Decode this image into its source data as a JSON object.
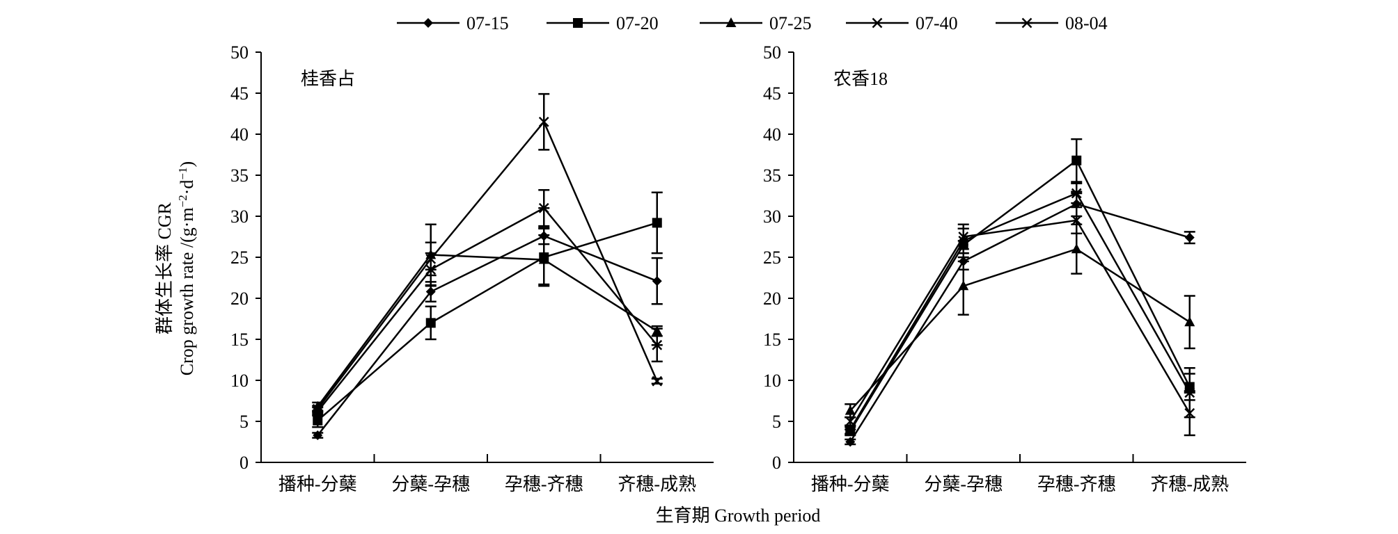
{
  "figure": {
    "ylabel_cn": "群体生长率 CGR",
    "ylabel_en_prefix": "Crop growth rate /(g·m",
    "ylabel_en_sup1": "−2",
    "ylabel_en_mid": "·d",
    "ylabel_en_sup2": "−1",
    "ylabel_en_suffix": ")",
    "xlabel": "生育期 Growth period",
    "legend": [
      {
        "name": "07-15",
        "marker": "diamond"
      },
      {
        "name": "07-20",
        "marker": "square"
      },
      {
        "name": "07-25",
        "marker": "triangle"
      },
      {
        "name": "07-40",
        "marker": "x"
      },
      {
        "name": "08-04",
        "marker": "star"
      }
    ],
    "colors": {
      "line": "#000000",
      "background": "#ffffff"
    }
  },
  "chart_data": [
    {
      "type": "line",
      "panel_label": "桂香占",
      "categories": [
        "播种-分蘖",
        "分蘖-孕穗",
        "孕穗-齐穗",
        "齐穗-成熟"
      ],
      "ylim": [
        0,
        50
      ],
      "yticks": [
        0,
        5,
        10,
        15,
        20,
        25,
        30,
        35,
        40,
        45,
        50
      ],
      "grid": false,
      "legend_position": "top",
      "series": [
        {
          "name": "07-15",
          "marker": "diamond",
          "values": [
            3.3,
            20.8,
            27.6,
            22.1
          ],
          "errors": [
            0.3,
            1.2,
            1.0,
            2.8
          ]
        },
        {
          "name": "07-20",
          "marker": "square",
          "values": [
            5.1,
            17.0,
            25.0,
            29.2
          ],
          "errors": [
            0.8,
            2.0,
            3.5,
            3.7
          ]
        },
        {
          "name": "07-25",
          "marker": "triangle",
          "values": [
            6.8,
            25.3,
            24.7,
            16.0
          ],
          "errors": [
            0.5,
            3.7,
            3.0,
            0.6
          ]
        },
        {
          "name": "07-40",
          "marker": "x",
          "values": [
            6.5,
            24.8,
            41.5,
            9.9
          ],
          "errors": [
            0.4,
            2.0,
            3.4,
            0.3
          ]
        },
        {
          "name": "08-04",
          "marker": "star",
          "values": [
            6.2,
            23.5,
            31.0,
            14.3
          ],
          "errors": [
            0.5,
            2.0,
            2.2,
            2.0
          ]
        }
      ]
    },
    {
      "type": "line",
      "panel_label": "农香18",
      "categories": [
        "播种-分蘖",
        "分蘖-孕穗",
        "孕穗-齐穗",
        "齐穗-成熟"
      ],
      "ylim": [
        0,
        50
      ],
      "yticks": [
        0,
        5,
        10,
        15,
        20,
        25,
        30,
        35,
        40,
        45,
        50
      ],
      "grid": false,
      "legend_position": "top",
      "series": [
        {
          "name": "07-15",
          "marker": "diamond",
          "values": [
            2.5,
            24.5,
            31.5,
            27.4
          ],
          "errors": [
            0.3,
            1.0,
            1.5,
            0.7
          ]
        },
        {
          "name": "07-20",
          "marker": "square",
          "values": [
            3.8,
            26.5,
            36.8,
            9.2
          ],
          "errors": [
            0.5,
            2.0,
            2.6,
            1.6
          ]
        },
        {
          "name": "07-25",
          "marker": "triangle",
          "values": [
            6.3,
            21.5,
            26.0,
            17.1
          ],
          "errors": [
            0.8,
            3.5,
            3.0,
            3.2
          ]
        },
        {
          "name": "07-40",
          "marker": "x",
          "values": [
            5.0,
            27.5,
            29.5,
            6.0
          ],
          "errors": [
            0.5,
            1.5,
            1.6,
            2.7
          ]
        },
        {
          "name": "08-04",
          "marker": "star",
          "values": [
            4.0,
            27.0,
            32.8,
            8.5
          ],
          "errors": [
            0.5,
            1.5,
            1.2,
            3.0
          ]
        }
      ]
    }
  ]
}
